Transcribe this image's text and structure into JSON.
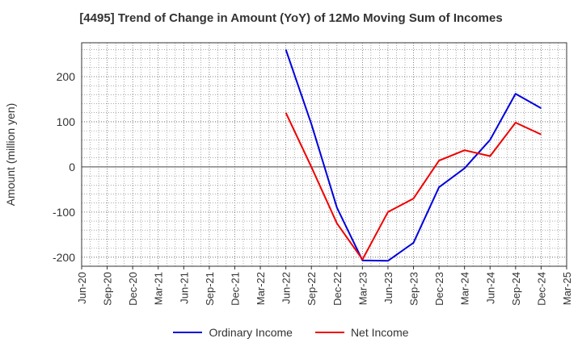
{
  "chart_data": {
    "type": "line",
    "title": "[4495]  Trend of Change in Amount (YoY) of 12Mo Moving Sum of Incomes",
    "xlabel": "",
    "ylabel": "Amount (million yen)",
    "ylim": [
      -220,
      275
    ],
    "yticks": [
      -200,
      -100,
      0,
      100,
      200
    ],
    "grid": true,
    "legend_position": "bottom",
    "categories": [
      "Jun-20",
      "Sep-20",
      "Dec-20",
      "Mar-21",
      "Jun-21",
      "Sep-21",
      "Dec-21",
      "Mar-22",
      "Jun-22",
      "Sep-22",
      "Dec-22",
      "Mar-23",
      "Jun-23",
      "Sep-23",
      "Dec-23",
      "Mar-24",
      "Jun-24",
      "Sep-24",
      "Dec-24",
      "Mar-25"
    ],
    "series": [
      {
        "name": "Ordinary Income",
        "color": "#0000dd",
        "values": [
          null,
          null,
          null,
          null,
          null,
          null,
          null,
          null,
          260,
          95,
          -90,
          -207,
          -208,
          -168,
          -45,
          -3,
          60,
          162,
          130,
          null
        ]
      },
      {
        "name": "Net Income",
        "color": "#ee0000",
        "values": [
          null,
          null,
          null,
          null,
          null,
          null,
          null,
          null,
          120,
          0,
          -125,
          -205,
          -100,
          -70,
          14,
          37,
          24,
          98,
          72,
          null
        ]
      }
    ]
  }
}
